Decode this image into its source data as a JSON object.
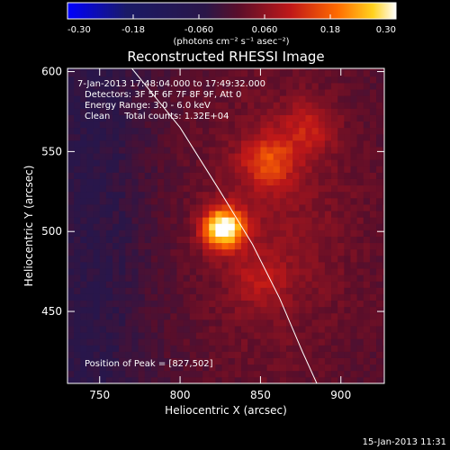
{
  "chart_data": {
    "type": "heatmap",
    "title": "Reconstructed RHESSI Image",
    "xlabel": "Heliocentric X (arcsec)",
    "ylabel": "Heliocentric Y (arcsec)",
    "xlim": [
      730,
      927
    ],
    "ylim": [
      405,
      602
    ],
    "x_ticks": [
      750,
      800,
      850,
      900
    ],
    "y_ticks": [
      450,
      500,
      550,
      600
    ],
    "colorbar": {
      "range": [
        -0.3,
        0.3
      ],
      "tick_values": [
        -0.3,
        -0.18,
        -0.06,
        0.06,
        0.18,
        0.3
      ],
      "tick_labels": [
        "-0.30",
        "-0.18",
        "-0.060",
        "0.060",
        "0.18",
        "0.30"
      ],
      "units_label": "(photons cm⁻² s⁻¹ asec⁻²)"
    },
    "annotations": [
      "7-Jan-2013 17:48:04.000 to 17:49:32.000",
      "Detectors: 3F 5F 6F 7F 8F 9F, Att 0",
      "Energy Range: 3.0 - 6.0 keV",
      "Clean     Total counts: 1.32E+04"
    ],
    "peak_label": "Position of Peak = [827,502]",
    "peak": {
      "x": 827,
      "y": 502,
      "value": 0.3
    },
    "secondary_sources": [
      {
        "x": 855,
        "y": 544,
        "value": 0.12
      },
      {
        "x": 880,
        "y": 565,
        "value": 0.08
      },
      {
        "x": 850,
        "y": 470,
        "value": 0.06
      }
    ],
    "limb_curve": [
      {
        "x": 770,
        "y": 602
      },
      {
        "x": 800,
        "y": 565
      },
      {
        "x": 825,
        "y": 525
      },
      {
        "x": 845,
        "y": 492
      },
      {
        "x": 862,
        "y": 458
      },
      {
        "x": 876,
        "y": 425
      },
      {
        "x": 885,
        "y": 405
      }
    ]
  },
  "footer_timestamp": "15-Jan-2013 11:31"
}
